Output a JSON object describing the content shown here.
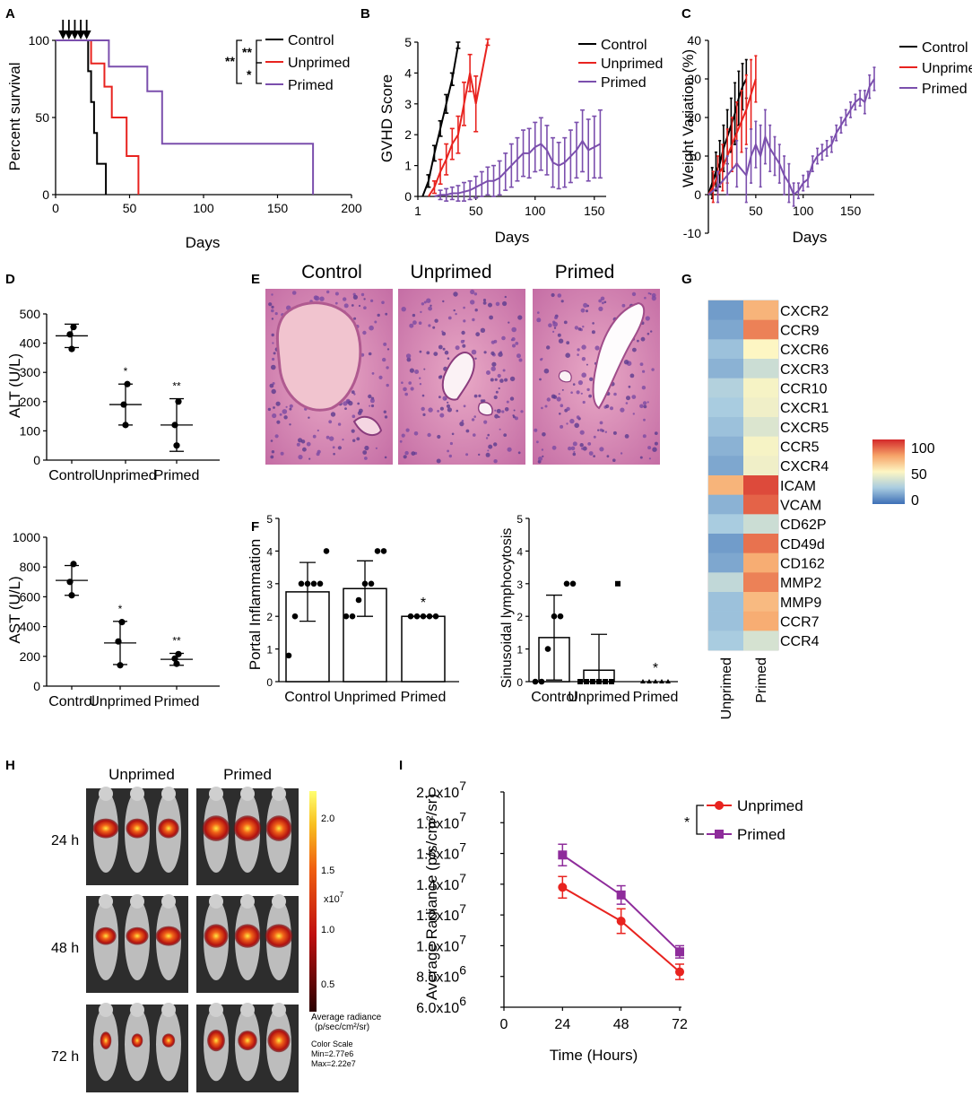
{
  "panels": {
    "A": "A",
    "B": "B",
    "C": "C",
    "D": "D",
    "E": "E",
    "F": "F",
    "G": "G",
    "H": "H",
    "I": "I"
  },
  "colors": {
    "control": "#000000",
    "unprimed": "#e8231f",
    "primed": "#7b4fad",
    "primed_I": "#8e2c9b"
  },
  "chart_data": [
    {
      "id": "A",
      "type": "line",
      "title": "",
      "xlabel": "Days",
      "ylabel": "Percent survival",
      "xlim": [
        0,
        200
      ],
      "ylim": [
        0,
        100
      ],
      "xticks": [
        "0",
        "50",
        "100",
        "150",
        "200"
      ],
      "yticks": [
        "0",
        "50",
        "100"
      ],
      "dosing_arrows_days": [
        5,
        9,
        13,
        17,
        21
      ],
      "series": [
        {
          "name": "Control",
          "steps": [
            [
              0,
              100
            ],
            [
              22,
              100
            ],
            [
              22,
              80
            ],
            [
              24,
              80
            ],
            [
              24,
              60
            ],
            [
              26,
              60
            ],
            [
              26,
              40
            ],
            [
              28,
              40
            ],
            [
              28,
              20
            ],
            [
              34,
              20
            ],
            [
              34,
              0
            ]
          ]
        },
        {
          "name": "Unprimed",
          "steps": [
            [
              0,
              100
            ],
            [
              24,
              100
            ],
            [
              24,
              85
            ],
            [
              33,
              85
            ],
            [
              33,
              70
            ],
            [
              38,
              70
            ],
            [
              38,
              50
            ],
            [
              48,
              50
            ],
            [
              48,
              25
            ],
            [
              56,
              25
            ],
            [
              56,
              0
            ]
          ]
        },
        {
          "name": "Primed",
          "steps": [
            [
              0,
              100
            ],
            [
              36,
              100
            ],
            [
              36,
              83
            ],
            [
              62,
              83
            ],
            [
              62,
              67
            ],
            [
              72,
              67
            ],
            [
              72,
              33
            ],
            [
              174,
              33
            ],
            [
              174,
              0
            ]
          ]
        }
      ],
      "legend": [
        "Control",
        "Unprimed",
        "Primed"
      ],
      "significance": {
        "outer": "**",
        "upper": "**",
        "lower": "*"
      }
    },
    {
      "id": "B",
      "type": "line",
      "xlabel": "Days",
      "ylabel": "GVHD Score",
      "xlim": [
        0,
        160
      ],
      "ylim": [
        0,
        5
      ],
      "xticks": [
        "1",
        "50",
        "100",
        "150"
      ],
      "yticks": [
        "0",
        "1",
        "2",
        "3",
        "4",
        "5"
      ],
      "series": [
        {
          "name": "Control",
          "x": [
            5,
            10,
            15,
            20,
            25,
            30,
            35
          ],
          "y": [
            0,
            0.5,
            1.4,
            2.2,
            3.0,
            3.8,
            4.9
          ],
          "err": [
            0,
            0.2,
            0.25,
            0.25,
            0.3,
            0.2,
            0.1
          ]
        },
        {
          "name": "Unprimed",
          "x": [
            10,
            15,
            20,
            25,
            30,
            35,
            40,
            45,
            50,
            60
          ],
          "y": [
            0,
            0.3,
            0.8,
            1.2,
            1.7,
            2.0,
            3.0,
            4.0,
            3.0,
            5.0
          ],
          "err": [
            0,
            0.2,
            0.4,
            0.5,
            0.5,
            0.6,
            0.7,
            0.6,
            0.9,
            0.1
          ]
        },
        {
          "name": "Primed",
          "x": [
            15,
            20,
            25,
            30,
            35,
            40,
            45,
            50,
            55,
            60,
            65,
            70,
            75,
            80,
            85,
            90,
            95,
            100,
            105,
            110,
            115,
            120,
            125,
            130,
            135,
            140,
            145,
            150,
            155
          ],
          "y": [
            0,
            0.05,
            0.05,
            0.1,
            0.1,
            0.15,
            0.2,
            0.3,
            0.4,
            0.5,
            0.5,
            0.6,
            0.8,
            1.0,
            1.2,
            1.4,
            1.4,
            1.6,
            1.7,
            1.5,
            1.1,
            1.0,
            1.1,
            1.3,
            1.5,
            1.8,
            1.5,
            1.6,
            1.7
          ],
          "err": [
            0,
            0.15,
            0.2,
            0.2,
            0.25,
            0.3,
            0.3,
            0.35,
            0.4,
            0.45,
            0.5,
            0.55,
            0.6,
            0.7,
            0.7,
            0.75,
            0.8,
            0.8,
            0.85,
            0.8,
            0.8,
            0.75,
            0.8,
            0.85,
            0.9,
            1.0,
            1.0,
            1.0,
            1.1
          ]
        }
      ],
      "legend": [
        "Control",
        "Unprimed",
        "Primed"
      ]
    },
    {
      "id": "C",
      "type": "line",
      "xlabel": "Days",
      "ylabel": "Weight Variation (%)",
      "xlim": [
        0,
        175
      ],
      "ylim": [
        -10,
        40
      ],
      "xticks": [
        "50",
        "100",
        "150"
      ],
      "yticks": [
        "-10",
        "0",
        "10",
        "20",
        "30",
        "40"
      ],
      "series": [
        {
          "name": "Control",
          "x": [
            0,
            4,
            8,
            12,
            16,
            20,
            24,
            28,
            32,
            36,
            40
          ],
          "y": [
            0,
            3,
            6,
            8,
            12,
            15,
            18,
            21,
            25,
            28,
            30
          ],
          "err": [
            0,
            4,
            5,
            6,
            6,
            7,
            7,
            8,
            7,
            6,
            5
          ]
        },
        {
          "name": "Unprimed",
          "x": [
            0,
            5,
            10,
            15,
            20,
            25,
            30,
            35,
            40,
            45,
            50
          ],
          "y": [
            0,
            2,
            5,
            7,
            10,
            13,
            16,
            19,
            22,
            26,
            30
          ],
          "err": [
            0,
            4,
            5,
            6,
            7,
            7,
            8,
            8,
            9,
            9,
            6
          ]
        },
        {
          "name": "Primed",
          "x": [
            0,
            10,
            20,
            30,
            40,
            45,
            50,
            55,
            60,
            65,
            70,
            75,
            80,
            85,
            90,
            95,
            100,
            105,
            110,
            115,
            120,
            125,
            130,
            135,
            140,
            145,
            150,
            155,
            160,
            165,
            170,
            175
          ],
          "y": [
            0,
            2,
            5,
            8,
            5,
            10,
            13,
            10,
            15,
            12,
            10,
            8,
            5,
            3,
            0,
            1,
            3,
            4,
            8,
            10,
            11,
            12,
            13,
            16,
            18,
            20,
            22,
            24,
            25,
            24,
            28,
            30
          ],
          "err": [
            0,
            4,
            5,
            6,
            7,
            7,
            6,
            8,
            7,
            6,
            5,
            5,
            5,
            5,
            3,
            2,
            2,
            2,
            2,
            2,
            2,
            2,
            2,
            2,
            2,
            2,
            2,
            2,
            2,
            3,
            3,
            3
          ]
        }
      ],
      "legend": [
        "Control",
        "Unprimed",
        "Primed"
      ]
    },
    {
      "id": "D1",
      "type": "scatter",
      "ylabel": "ALT (U/L)",
      "ylim": [
        0,
        500
      ],
      "yticks": [
        "0",
        "100",
        "200",
        "300",
        "400",
        "500"
      ],
      "categories": [
        "Control",
        "Unprimed",
        "Primed"
      ],
      "points": [
        [
          380,
          430,
          455
        ],
        [
          120,
          190,
          260
        ],
        [
          50,
          120,
          200
        ]
      ],
      "mean": [
        425,
        190,
        120
      ],
      "sd": [
        40,
        70,
        90
      ],
      "sig": [
        "",
        "*",
        "**"
      ]
    },
    {
      "id": "D2",
      "type": "scatter",
      "ylabel": "AST (U/L)",
      "ylim": [
        0,
        1000
      ],
      "yticks": [
        "0",
        "200",
        "400",
        "600",
        "800",
        "1000"
      ],
      "categories": [
        "Control",
        "Unprimed",
        "Primed"
      ],
      "points": [
        [
          610,
          700,
          820
        ],
        [
          140,
          300,
          430
        ],
        [
          150,
          185,
          215
        ]
      ],
      "mean": [
        710,
        290,
        180
      ],
      "sd": [
        100,
        145,
        40
      ],
      "sig": [
        "",
        "*",
        "**"
      ]
    },
    {
      "id": "F1",
      "type": "bar",
      "ylabel": "Portal Inflammation",
      "ylim": [
        0,
        5
      ],
      "yticks": [
        "0",
        "1",
        "2",
        "3",
        "4",
        "5"
      ],
      "categories": [
        "Control",
        "Unprimed",
        "Primed"
      ],
      "values": [
        2.75,
        2.85,
        2.0
      ],
      "sd": [
        0.9,
        0.85,
        0.0
      ],
      "points": [
        [
          0.8,
          2.0,
          3.0,
          3.0,
          3.0,
          3.0,
          4.0
        ],
        [
          2.0,
          2.0,
          2.5,
          3.0,
          3.0,
          4.0,
          4.0
        ],
        [
          2.0,
          2.0,
          2.0,
          2.0,
          2.0
        ]
      ],
      "sig": [
        "",
        "",
        "*"
      ]
    },
    {
      "id": "F2",
      "type": "bar",
      "ylabel": "Sinusoidal lymphocytosis",
      "ylim": [
        0,
        5
      ],
      "yticks": [
        "0",
        "1",
        "2",
        "3",
        "4",
        "5"
      ],
      "categories": [
        "Control",
        "Unprimed",
        "Primed"
      ],
      "values": [
        1.35,
        0.35,
        0.0
      ],
      "sd": [
        1.3,
        1.1,
        0.0
      ],
      "points": [
        [
          0,
          0,
          1,
          2,
          2,
          3,
          3
        ],
        [
          0,
          0,
          0,
          0,
          0,
          0,
          3
        ],
        [
          0,
          0,
          0,
          0,
          0
        ]
      ],
      "sig": [
        "",
        "",
        "*"
      ]
    },
    {
      "id": "G",
      "type": "heatmap",
      "columns": [
        "Unprimed",
        "Primed"
      ],
      "rows": [
        "CXCR2",
        "CCR9",
        "CXCR6",
        "CXCR3",
        "CCR10",
        "CXCR1",
        "CXCR5",
        "CCR5",
        "CXCR4",
        "ICAM",
        "VCAM",
        "CD62P",
        "CD49d",
        "CD162",
        "MMP2",
        "MMP9",
        "CCR7",
        "CCR4"
      ],
      "values": [
        [
          12,
          70
        ],
        [
          15,
          82
        ],
        [
          22,
          50
        ],
        [
          18,
          35
        ],
        [
          28,
          48
        ],
        [
          25,
          46
        ],
        [
          22,
          40
        ],
        [
          18,
          48
        ],
        [
          15,
          46
        ],
        [
          70,
          93
        ],
        [
          18,
          88
        ],
        [
          25,
          35
        ],
        [
          12,
          85
        ],
        [
          15,
          72
        ],
        [
          32,
          82
        ],
        [
          22,
          68
        ],
        [
          22,
          72
        ],
        [
          25,
          38
        ]
      ],
      "scale": {
        "min": 0,
        "max": 100,
        "ticks": [
          "0",
          "50",
          "100"
        ]
      }
    },
    {
      "id": "I",
      "type": "line",
      "xlabel": "Time (Hours)",
      "ylabel": "Average Radiance (p/s/cm²/sr)",
      "xlim": [
        0,
        72
      ],
      "ylim": [
        6000000,
        20000000
      ],
      "xticks": [
        "0",
        "24",
        "48",
        "72"
      ],
      "yticks": [
        "6.0x10",
        "8.0x10",
        "1.0x10",
        "1.2x10",
        "1.4x10",
        "1.6x10",
        "1.8x10",
        "2.0x10"
      ],
      "ytick_exp": [
        "6",
        "6",
        "7",
        "7",
        "7",
        "7",
        "7",
        "7"
      ],
      "series": [
        {
          "name": "Unprimed",
          "x": [
            24,
            48,
            72
          ],
          "y": [
            13800000,
            11600000,
            8300000
          ],
          "err": [
            700000,
            800000,
            500000
          ]
        },
        {
          "name": "Primed",
          "x": [
            24,
            48,
            72
          ],
          "y": [
            15900000,
            13300000,
            9600000
          ],
          "err": [
            700000,
            600000,
            400000
          ]
        }
      ],
      "legend": [
        "Unprimed",
        "Primed"
      ],
      "significance": "*"
    }
  ],
  "E": {
    "labels": [
      "Control",
      "Unprimed",
      "Primed"
    ]
  },
  "H": {
    "col_labels": [
      "Unprimed",
      "Primed"
    ],
    "row_labels": [
      "24 h",
      "48 h",
      "72 h"
    ],
    "scale_ticks": [
      "2.0",
      "1.5",
      "1.0",
      "0.5"
    ],
    "scale_unit": "x10",
    "scale_unit_exp": "7",
    "scale_title_1": "Average radiance",
    "scale_title_2": "(p/sec/cm²/sr)",
    "color_scale": "Color Scale",
    "min": "Min=2.77e6",
    "max": "Max=2.22e7"
  }
}
